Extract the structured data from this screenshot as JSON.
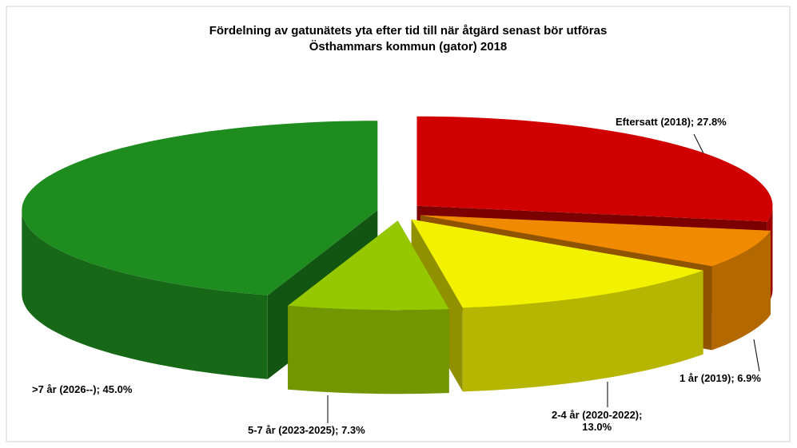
{
  "chart_data": {
    "type": "pie3d",
    "title": "Fördelning av gatunätets yta efter tid till när åtgärd senast bör utföras",
    "subtitle": "Östhammars kommun (gator) 2018",
    "values": [
      27.8,
      6.9,
      13.0,
      7.3,
      45.0
    ],
    "value_labels": [
      "Eftersatt (2018); 27.8%",
      "1 år (2019); 6.9%",
      "2-4 år (2020-2022);\n13.0%",
      "5-7 år (2023-2025); 7.3%",
      ">7 år (2026--); 45.0%"
    ],
    "colors": [
      "#d00000",
      "#f08a00",
      "#f2f200",
      "#96c800",
      "#1e8c1e"
    ]
  }
}
